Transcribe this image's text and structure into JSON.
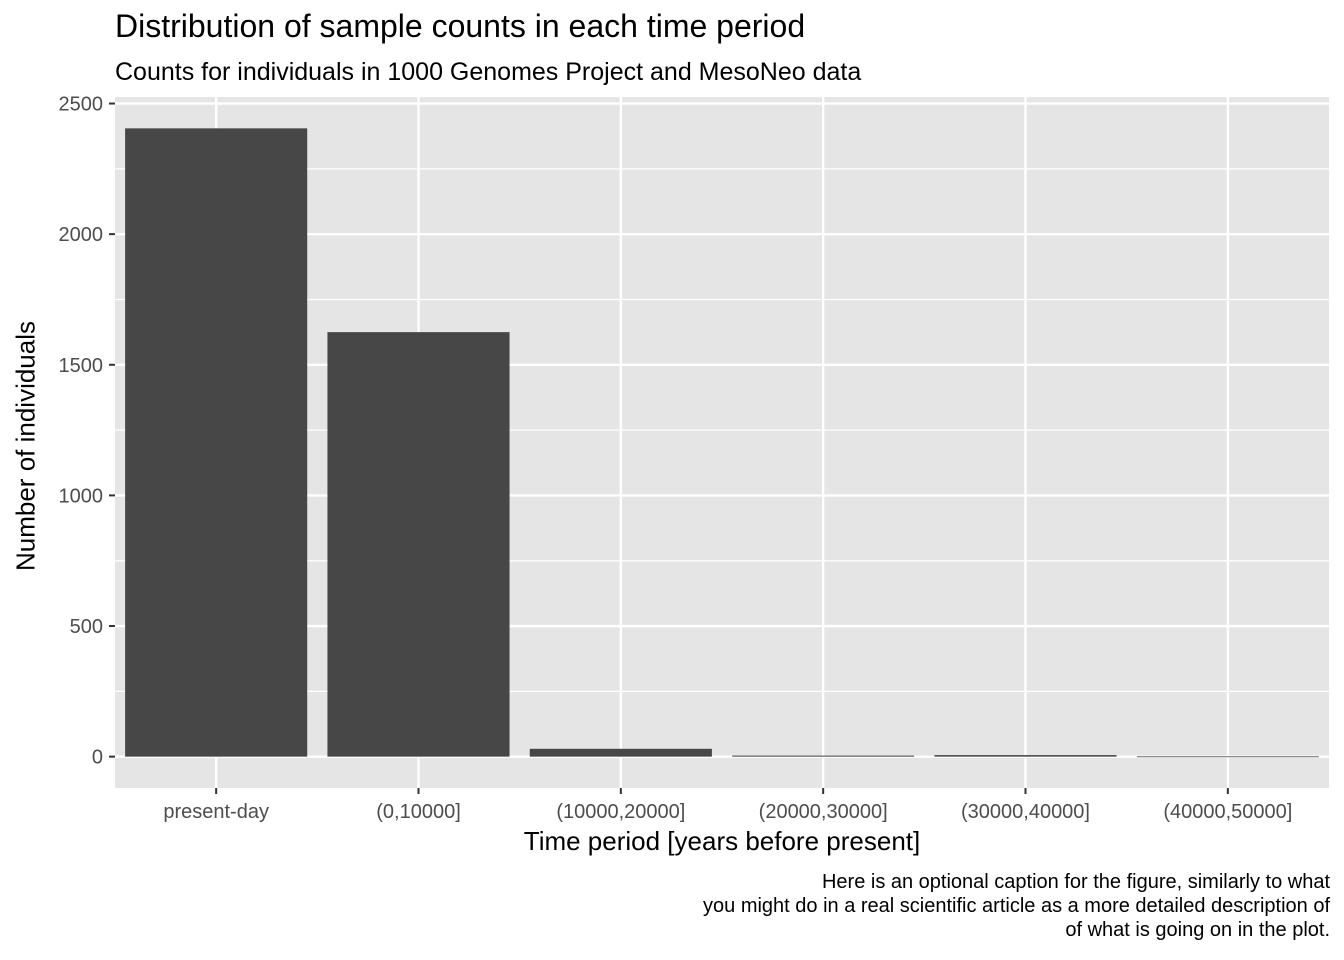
{
  "chart_data": {
    "type": "bar",
    "title": "Distribution of sample counts in each time period",
    "subtitle": "Counts for individuals in 1000 Genomes Project and MesoNeo data",
    "xlabel": "Time period [years before present]",
    "ylabel": "Number of individuals",
    "categories": [
      "present-day",
      "(0,10000]",
      "(10000,20000]",
      "(20000,30000]",
      "(30000,40000]",
      "(40000,50000]"
    ],
    "values": [
      2405,
      1625,
      30,
      4,
      6,
      1
    ],
    "ylim": [
      -120,
      2525
    ],
    "yticks": [
      0,
      500,
      1000,
      1500,
      2000,
      2500
    ],
    "grid": true,
    "bar_color": "#474747",
    "panel_color": "#e5e5e5",
    "caption": [
      "Here is an optional caption for the figure, similarly to what",
      "you might do in a real scientific article as a more detailed description of",
      "of what is going on in the plot."
    ]
  }
}
